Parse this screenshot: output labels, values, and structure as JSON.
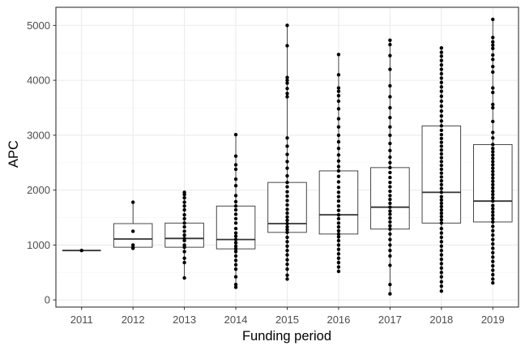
{
  "chart_data": {
    "type": "boxplot",
    "title": "",
    "xlabel": "Funding period",
    "ylabel": "APC",
    "ylim": [
      -130,
      5330
    ],
    "yticks": [
      0,
      1000,
      2000,
      3000,
      4000,
      5000
    ],
    "grid": true,
    "colors": {
      "panel_border": "#333333",
      "grid_major": "#ebebeb",
      "grid_minor": "#f5f5f5",
      "box_line": "#333333",
      "point": "#000000"
    },
    "categories": [
      "2011",
      "2012",
      "2013",
      "2014",
      "2015",
      "2016",
      "2017",
      "2018",
      "2019"
    ],
    "boxes": [
      {
        "category": "2011",
        "min": 900,
        "q1": 900,
        "median": 900,
        "q3": 900,
        "max": 900
      },
      {
        "category": "2012",
        "min": 940,
        "q1": 960,
        "median": 1110,
        "q3": 1390,
        "max": 1780
      },
      {
        "category": "2013",
        "min": 400,
        "q1": 960,
        "median": 1120,
        "q3": 1400,
        "max": 1960
      },
      {
        "category": "2014",
        "min": 230,
        "q1": 930,
        "median": 1100,
        "q3": 1710,
        "max": 3010
      },
      {
        "category": "2015",
        "min": 380,
        "q1": 1230,
        "median": 1390,
        "q3": 2140,
        "max": 5000
      },
      {
        "category": "2016",
        "min": 520,
        "q1": 1200,
        "median": 1550,
        "q3": 2350,
        "max": 4470
      },
      {
        "category": "2017",
        "min": 110,
        "q1": 1290,
        "median": 1690,
        "q3": 2410,
        "max": 4730
      },
      {
        "category": "2018",
        "min": 160,
        "q1": 1400,
        "median": 1960,
        "q3": 3170,
        "max": 4590
      },
      {
        "category": "2019",
        "min": 310,
        "q1": 1420,
        "median": 1800,
        "q3": 2830,
        "max": 5110
      }
    ],
    "points": [
      {
        "category": "2011",
        "values": [
          900
        ]
      },
      {
        "category": "2012",
        "values": [
          940,
          960,
          1000,
          1250,
          1780
        ]
      },
      {
        "category": "2013",
        "values": [
          400,
          680,
          760,
          880,
          960,
          1000,
          1080,
          1120,
          1180,
          1250,
          1330,
          1400,
          1480,
          1550,
          1640,
          1710,
          1780,
          1860,
          1920,
          1960
        ]
      },
      {
        "category": "2014",
        "values": [
          230,
          280,
          420,
          560,
          640,
          720,
          800,
          880,
          930,
          980,
          1040,
          1100,
          1160,
          1220,
          1300,
          1400,
          1480,
          1560,
          1640,
          1710,
          1790,
          1900,
          2080,
          2200,
          2380,
          2460,
          2620,
          3010
        ]
      },
      {
        "category": "2015",
        "values": [
          380,
          450,
          560,
          650,
          730,
          820,
          900,
          980,
          1060,
          1140,
          1230,
          1280,
          1330,
          1390,
          1450,
          1510,
          1580,
          1650,
          1730,
          1810,
          1890,
          1970,
          2060,
          2140,
          2260,
          2400,
          2520,
          2650,
          2800,
          2950,
          3700,
          3760,
          3850,
          3950,
          4000,
          4050,
          4630,
          5000
        ]
      },
      {
        "category": "2016",
        "values": [
          520,
          600,
          680,
          760,
          840,
          920,
          1000,
          1080,
          1150,
          1200,
          1260,
          1330,
          1400,
          1480,
          1550,
          1630,
          1710,
          1800,
          1880,
          1960,
          2050,
          2150,
          2250,
          2350,
          2430,
          2530,
          2640,
          2760,
          2880,
          3000,
          3150,
          3300,
          3480,
          3620,
          3720,
          3800,
          3860,
          4100,
          4470
        ]
      },
      {
        "category": "2017",
        "values": [
          110,
          280,
          630,
          800,
          900,
          1000,
          1100,
          1200,
          1290,
          1350,
          1420,
          1490,
          1560,
          1620,
          1690,
          1760,
          1830,
          1900,
          1980,
          2060,
          2140,
          2230,
          2320,
          2410,
          2500,
          2600,
          2720,
          2850,
          3000,
          3150,
          3320,
          3500,
          3700,
          3900,
          4200,
          4450,
          4650,
          4730
        ]
      },
      {
        "category": "2018",
        "values": [
          160,
          250,
          330,
          420,
          500,
          580,
          660,
          740,
          820,
          900,
          980,
          1060,
          1140,
          1220,
          1300,
          1400,
          1460,
          1520,
          1580,
          1640,
          1700,
          1760,
          1820,
          1880,
          1960,
          2030,
          2100,
          2170,
          2240,
          2310,
          2380,
          2450,
          2520,
          2590,
          2660,
          2730,
          2800,
          2870,
          2940,
          3010,
          3090,
          3170,
          3260,
          3350,
          3440,
          3530,
          3620,
          3710,
          3800,
          3880,
          3960,
          4040,
          4120,
          4200,
          4280,
          4360,
          4440,
          4510,
          4590
        ]
      },
      {
        "category": "2019",
        "values": [
          310,
          380,
          460,
          540,
          620,
          700,
          780,
          860,
          940,
          1020,
          1100,
          1180,
          1260,
          1340,
          1420,
          1480,
          1540,
          1600,
          1660,
          1720,
          1800,
          1860,
          1920,
          1980,
          2040,
          2100,
          2160,
          2220,
          2280,
          2340,
          2400,
          2460,
          2520,
          2580,
          2640,
          2700,
          2760,
          2830,
          2950,
          3050,
          3250,
          3500,
          3560,
          3780,
          3860,
          4150,
          4250,
          4380,
          4460,
          4580,
          4640,
          4700,
          4780,
          5110
        ]
      }
    ]
  }
}
